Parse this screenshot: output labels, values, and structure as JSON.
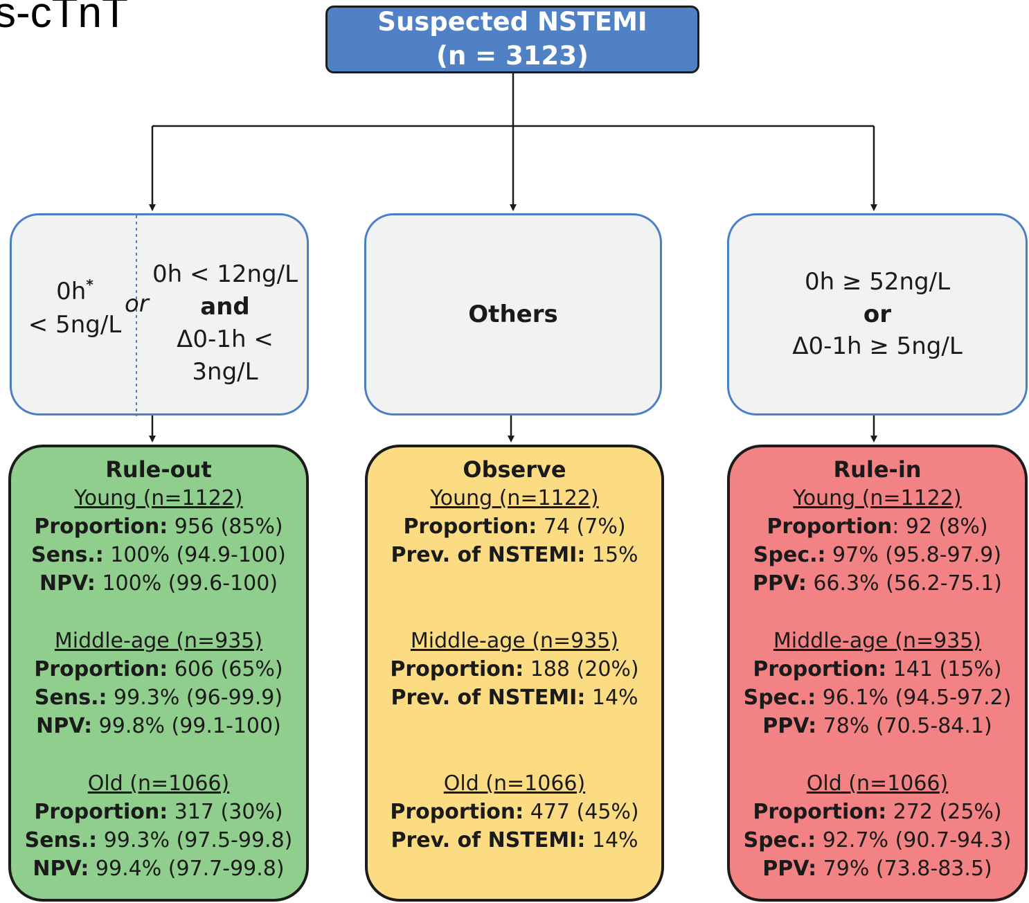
{
  "corner_label": "s-cTnT",
  "top_box": {
    "line1": "Suspected NSTEMI",
    "line2": "(n = 3123)"
  },
  "criteria": {
    "left": {
      "a_line1": "0h",
      "a_sup": "*",
      "a_line2": "< 5ng/L",
      "or": "or",
      "b_line1": "0h < 12ng/L",
      "b_line2": "and",
      "b_line3": "Δ0-1h < 3ng/L"
    },
    "middle": {
      "label": "Others"
    },
    "right": {
      "line1": "0h ≥ 52ng/L",
      "line2": "or",
      "line3": "Δ0-1h ≥ 5ng/L"
    }
  },
  "colors": {
    "top_fill": "#4f81c4",
    "criteria_border": "#4a7fc7",
    "criteria_fill": "#f2f2f2",
    "rule_out": "#8fce8c",
    "observe": "#fcdc82",
    "rule_in": "#f28283"
  },
  "outcomes": {
    "rule_out": {
      "title": "Rule-out",
      "groups": [
        {
          "label": "Young (n=1122)",
          "lines": [
            {
              "name": "Proportion:",
              "value": " 956 (85%)"
            },
            {
              "name": "Sens.:",
              "value": " 100% (94.9-100)"
            },
            {
              "name": "NPV:",
              "value": " 100% (99.6-100)"
            }
          ]
        },
        {
          "label": "Middle-age (n=935)",
          "lines": [
            {
              "name": "Proportion:",
              "value": " 606 (65%)"
            },
            {
              "name": "Sens.:",
              "value": " 99.3% (96-99.9)"
            },
            {
              "name": "NPV:",
              "value": " 99.8% (99.1-100)"
            }
          ]
        },
        {
          "label": "Old (n=1066)",
          "lines": [
            {
              "name": "Proportion:",
              "value": " 317 (30%)"
            },
            {
              "name": "Sens.:",
              "value": " 99.3% (97.5-99.8)"
            },
            {
              "name": "NPV:",
              "value": " 99.4% (97.7-99.8)"
            }
          ]
        }
      ]
    },
    "observe": {
      "title": "Observe",
      "groups": [
        {
          "label": "Young (n=1122)",
          "lines": [
            {
              "name": "Proportion:",
              "value": " 74 (7%)"
            },
            {
              "name": "Prev. of NSTEMI:",
              "value": " 15%"
            }
          ]
        },
        {
          "label": "Middle-age (n=935)",
          "lines": [
            {
              "name": "Proportion:",
              "value": " 188 (20%)"
            },
            {
              "name": "Prev. of NSTEMI:",
              "value": " 14%"
            }
          ]
        },
        {
          "label": "Old (n=1066)",
          "lines": [
            {
              "name": "Proportion:",
              "value": " 477 (45%)"
            },
            {
              "name": "Prev. of NSTEMI:",
              "value": " 14%"
            }
          ]
        }
      ]
    },
    "rule_in": {
      "title": "Rule-in",
      "groups": [
        {
          "label": "Young (n=1122)",
          "lines": [
            {
              "name": "Proportion",
              "value": ": 92 (8%)"
            },
            {
              "name": "Spec.:",
              "value": " 97% (95.8-97.9)"
            },
            {
              "name": "PPV:",
              "value": " 66.3% (56.2-75.1)"
            }
          ]
        },
        {
          "label": "Middle-age (n=935)",
          "lines": [
            {
              "name": "Proportion:",
              "value": " 141 (15%)"
            },
            {
              "name": "Spec.:",
              "value": " 96.1% (94.5-97.2)"
            },
            {
              "name": "PPV:",
              "value": " 78% (70.5-84.1)"
            }
          ]
        },
        {
          "label": "Old (n=1066)",
          "lines": [
            {
              "name": "Proportion:",
              "value": " 272 (25%)"
            },
            {
              "name": "Spec.:",
              "value": " 92.7% (90.7-94.3)"
            },
            {
              "name": "PPV:",
              "value": " 79% (73.8-83.5)"
            }
          ]
        }
      ]
    }
  }
}
